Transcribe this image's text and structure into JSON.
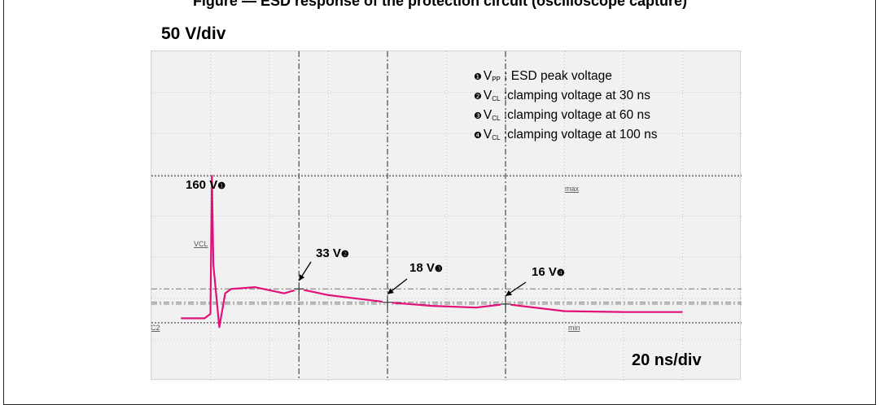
{
  "page": {
    "title": "Figure — ESD response of the protection circuit (oscilloscope capture)"
  },
  "scope": {
    "vertical_scale": "50 V/div",
    "horizontal_scale": "20 ns/div",
    "trace_label": "VCL",
    "channel_label": "C2",
    "max_label": "max",
    "min_label": "min"
  },
  "legend": [
    {
      "marker": "❶",
      "symbol": "V",
      "sub": "PP",
      "text": " : ESD peak voltage"
    },
    {
      "marker": "❷",
      "symbol": "V",
      "sub": "CL",
      "text": " :clamping voltage at 30 ns"
    },
    {
      "marker": "❸",
      "symbol": "V",
      "sub": "CL",
      "text": " :clamping voltage at 60 ns"
    },
    {
      "marker": "❹",
      "symbol": "V",
      "sub": "CL",
      "text": " :clamping voltage at 100 ns"
    }
  ],
  "annotations": [
    {
      "text": "160 V",
      "marker": "❶"
    },
    {
      "text": "33 V",
      "marker": "❷"
    },
    {
      "text": "18 V",
      "marker": "❸"
    },
    {
      "text": "16 V",
      "marker": "❹"
    }
  ],
  "chart_data": {
    "type": "line",
    "title": "",
    "xlabel": "20 ns/div",
    "ylabel": "50 V/div",
    "series": [
      {
        "name": "VCL",
        "color": "#e0127a",
        "x": [
          -10,
          -2,
          0,
          0.5,
          1,
          3,
          5,
          7,
          15,
          25,
          30,
          40,
          50,
          60,
          75,
          90,
          100,
          120,
          140,
          160
        ],
        "values": [
          0,
          0,
          5,
          160,
          60,
          -10,
          28,
          33,
          35,
          28,
          33,
          26,
          22,
          18,
          14,
          12,
          16,
          8,
          7,
          7
        ]
      }
    ],
    "markers": [
      {
        "x": 0.5,
        "y": 160,
        "label": "160 V",
        "id": "1"
      },
      {
        "x": 30,
        "y": 33,
        "label": "33 V",
        "id": "2"
      },
      {
        "x": 60,
        "y": 18,
        "label": "18 V",
        "id": "3"
      },
      {
        "x": 100,
        "y": 16,
        "label": "16 V",
        "id": "4"
      }
    ],
    "reference_levels": [
      {
        "name": "max",
        "y": 160
      },
      {
        "name": "min",
        "y": -5
      }
    ],
    "xlim": [
      -20,
      180
    ],
    "ylim": [
      -70,
      300
    ],
    "grid": true
  }
}
